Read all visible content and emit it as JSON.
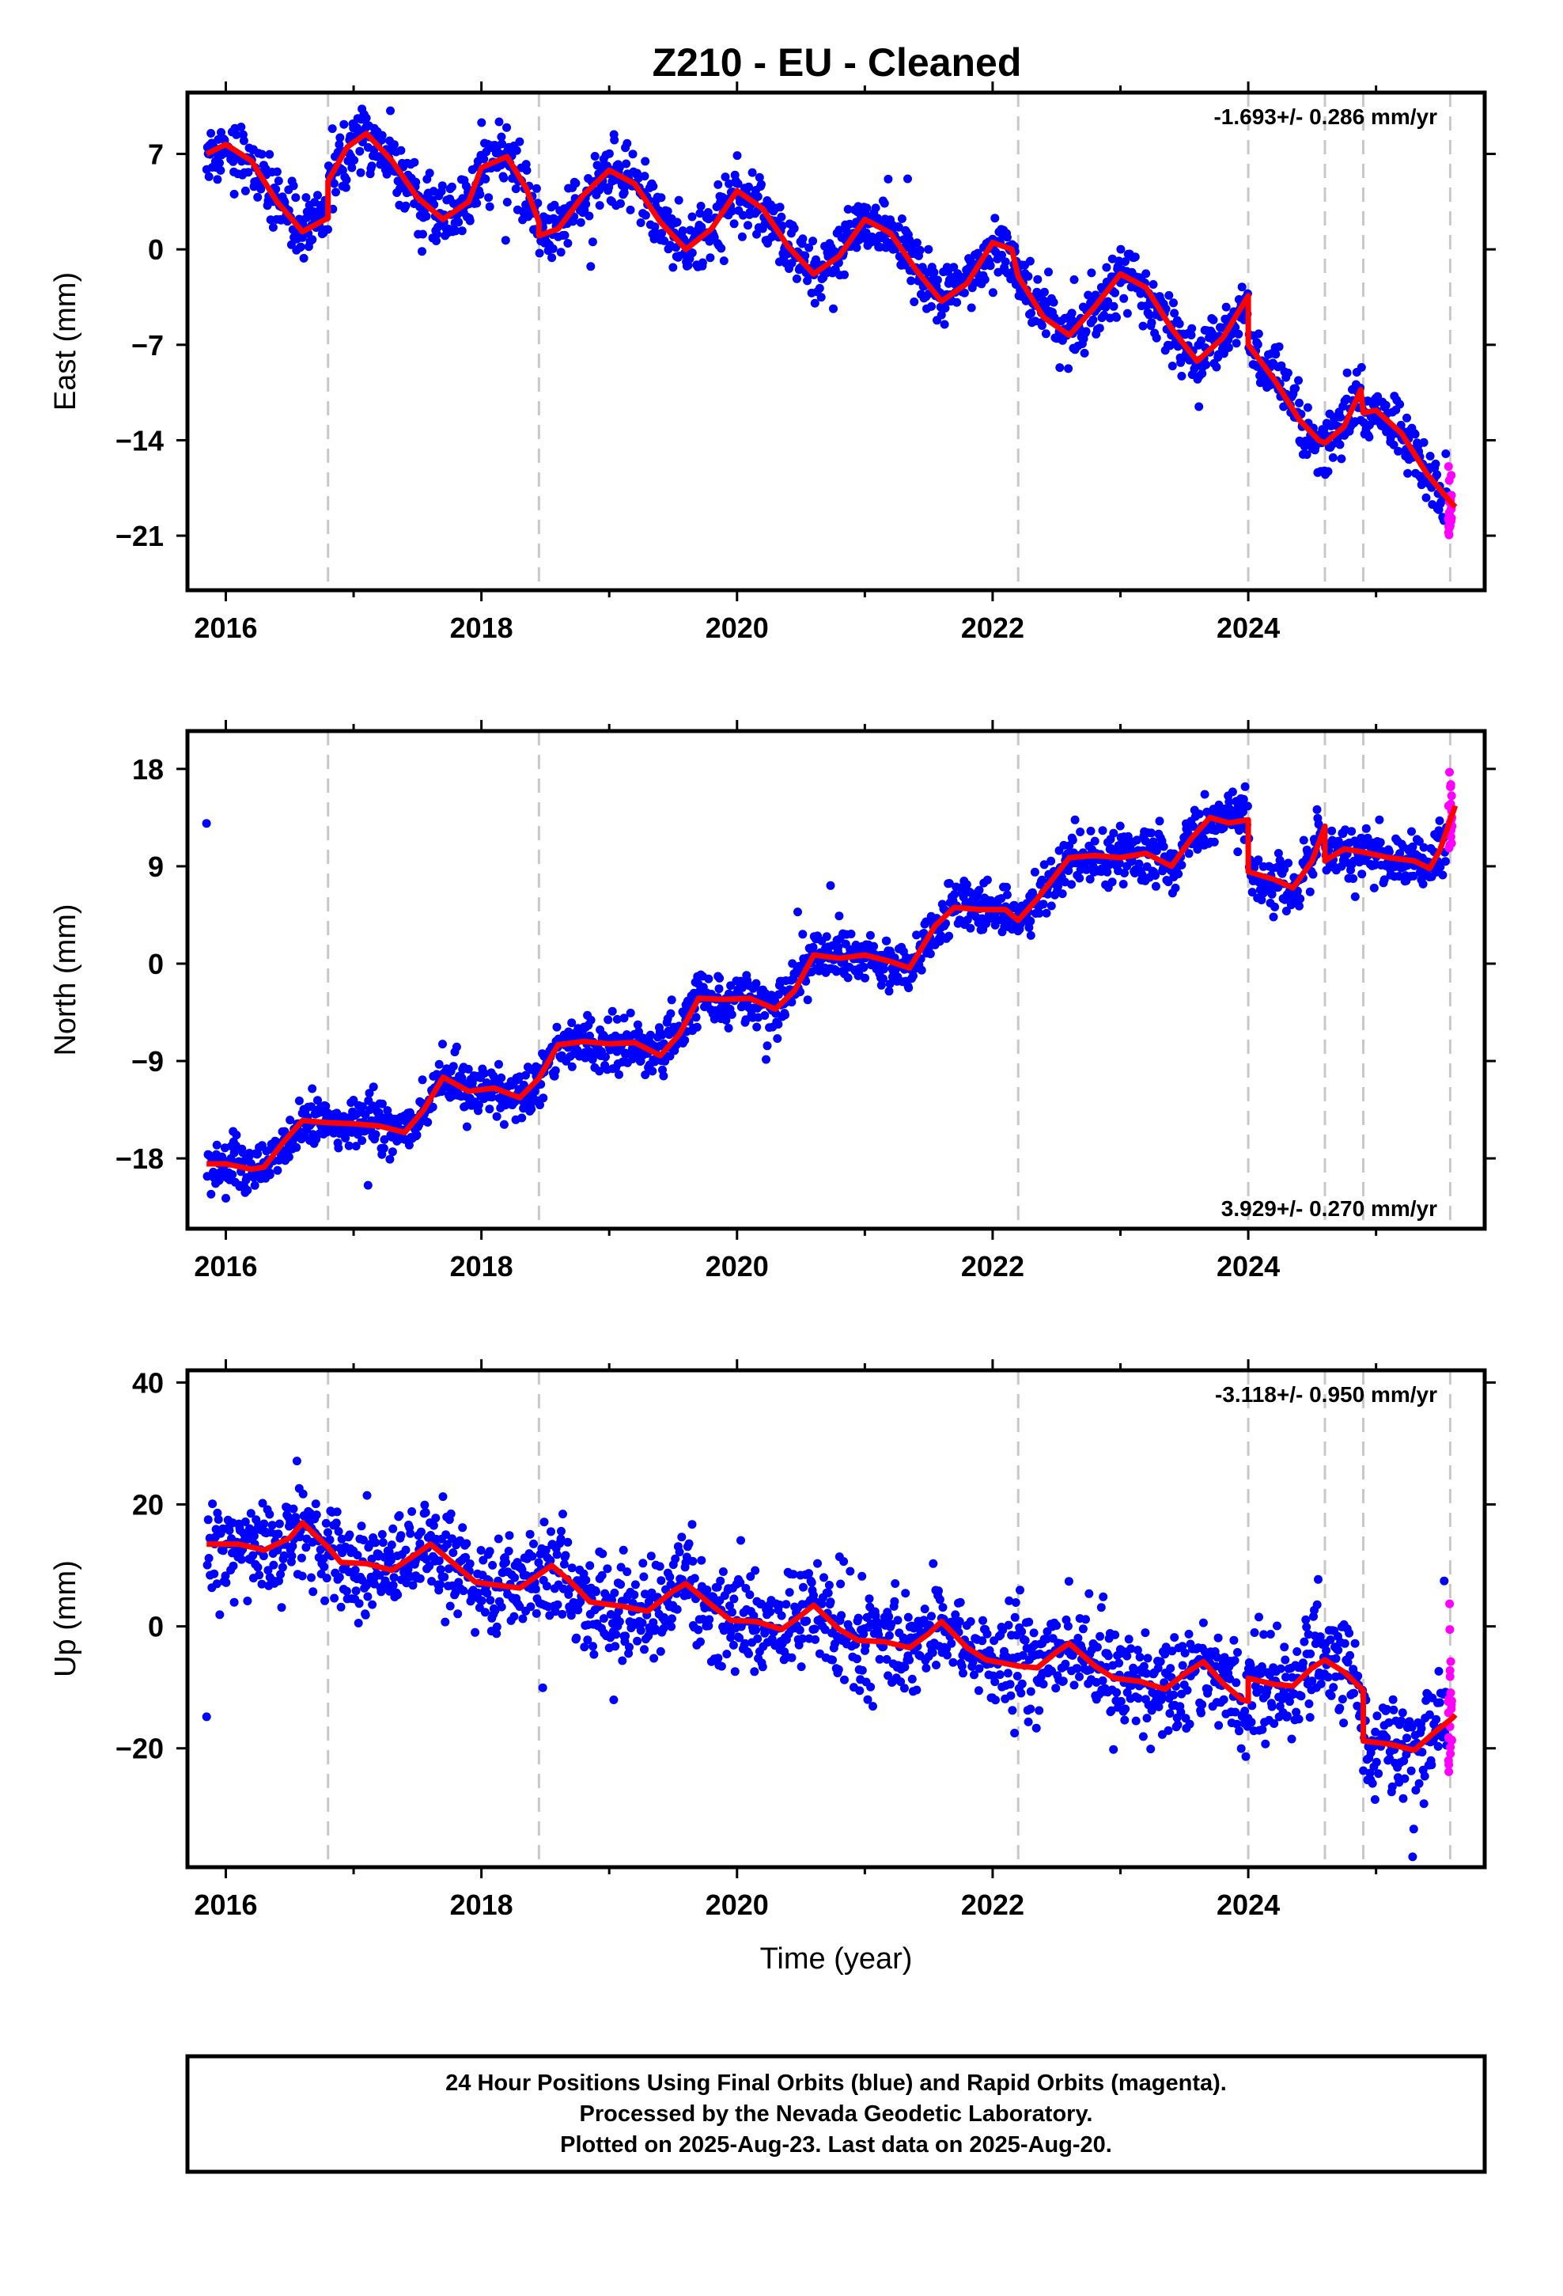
{
  "title": "Z210  - EU - Cleaned",
  "xlabel": "Time (year)",
  "footer_lines": [
    "24 Hour Positions Using Final Orbits (blue) and Rapid Orbits (magenta).",
    "Processed by the Nevada Geodetic Laboratory.",
    "Plotted on 2025-Aug-23. Last data on 2025-Aug-20."
  ],
  "colors": {
    "final": "#0000ff",
    "rapid": "#ff00ff",
    "model": "#ff0000",
    "event_lines": "#c8c8c8"
  },
  "chart_data": [
    {
      "type": "scatter",
      "ylabel": "East (mm)",
      "rate_text": "-1.693+/- 0.286 mm/yr",
      "rate_position": "top-right",
      "xlim": [
        2015.7,
        2025.85
      ],
      "ylim": [
        -25,
        11.5
      ],
      "xticks": [
        2016,
        2018,
        2020,
        2022,
        2024
      ],
      "yticks": [
        7,
        0,
        -7,
        -14,
        -21
      ],
      "event_lines": [
        2016.8,
        2018.45,
        2022.2,
        2024.0,
        2024.6,
        2024.9,
        2025.58
      ],
      "model": [
        [
          2015.85,
          7.0
        ],
        [
          2016.0,
          7.7
        ],
        [
          2016.2,
          6.5
        ],
        [
          2016.4,
          3.5
        ],
        [
          2016.6,
          1.3
        ],
        [
          2016.8,
          2.3
        ],
        [
          2016.8,
          5.0
        ],
        [
          2016.95,
          7.5
        ],
        [
          2017.1,
          8.5
        ],
        [
          2017.3,
          6.5
        ],
        [
          2017.5,
          3.8
        ],
        [
          2017.7,
          2.2
        ],
        [
          2017.9,
          3.5
        ],
        [
          2018.0,
          6.0
        ],
        [
          2018.2,
          6.8
        ],
        [
          2018.35,
          4.5
        ],
        [
          2018.45,
          2.0
        ],
        [
          2018.45,
          1.0
        ],
        [
          2018.6,
          1.5
        ],
        [
          2018.8,
          4.0
        ],
        [
          2019.0,
          5.8
        ],
        [
          2019.2,
          4.8
        ],
        [
          2019.4,
          2.0
        ],
        [
          2019.6,
          0.0
        ],
        [
          2019.8,
          1.5
        ],
        [
          2020.0,
          4.3
        ],
        [
          2020.2,
          3.0
        ],
        [
          2020.4,
          0.2
        ],
        [
          2020.6,
          -1.8
        ],
        [
          2020.8,
          -0.5
        ],
        [
          2021.0,
          2.2
        ],
        [
          2021.2,
          1.2
        ],
        [
          2021.4,
          -1.5
        ],
        [
          2021.6,
          -3.8
        ],
        [
          2021.8,
          -2.5
        ],
        [
          2022.0,
          0.5
        ],
        [
          2022.15,
          0.0
        ],
        [
          2022.2,
          -2.0
        ],
        [
          2022.4,
          -5.0
        ],
        [
          2022.6,
          -6.3
        ],
        [
          2022.8,
          -4.2
        ],
        [
          2023.0,
          -1.8
        ],
        [
          2023.2,
          -2.8
        ],
        [
          2023.4,
          -5.8
        ],
        [
          2023.6,
          -8.2
        ],
        [
          2023.8,
          -6.5
        ],
        [
          2024.0,
          -3.4
        ],
        [
          2024.0,
          -7.0
        ],
        [
          2024.2,
          -9.5
        ],
        [
          2024.4,
          -12.5
        ],
        [
          2024.55,
          -14.0
        ],
        [
          2024.6,
          -14.2
        ],
        [
          2024.75,
          -13.0
        ],
        [
          2024.88,
          -10.3
        ],
        [
          2024.9,
          -12.0
        ],
        [
          2025.0,
          -11.8
        ],
        [
          2025.2,
          -13.5
        ],
        [
          2025.4,
          -16.5
        ],
        [
          2025.58,
          -18.5
        ],
        [
          2025.62,
          -18.9
        ]
      ],
      "model_label": null
    },
    {
      "type": "scatter",
      "ylabel": "North (mm)",
      "rate_text": "3.929+/- 0.270 mm/yr",
      "rate_position": "bottom-right",
      "xlim": [
        2015.7,
        2025.85
      ],
      "ylim": [
        -24.5,
        21.5
      ],
      "xticks": [
        2016,
        2018,
        2020,
        2022,
        2024
      ],
      "yticks": [
        18,
        9,
        0,
        -9,
        -18
      ],
      "event_lines": [
        2016.8,
        2018.45,
        2022.2,
        2024.0,
        2024.6,
        2024.9,
        2025.58
      ],
      "model": [
        [
          2015.85,
          -18.5
        ],
        [
          2016.0,
          -18.5
        ],
        [
          2016.2,
          -19.0
        ],
        [
          2016.3,
          -18.8
        ],
        [
          2016.45,
          -16.5
        ],
        [
          2016.6,
          -14.5
        ],
        [
          2016.8,
          -14.7
        ],
        [
          2017.0,
          -14.8
        ],
        [
          2017.2,
          -15.0
        ],
        [
          2017.4,
          -15.6
        ],
        [
          2017.55,
          -13.5
        ],
        [
          2017.7,
          -10.5
        ],
        [
          2017.9,
          -11.8
        ],
        [
          2018.1,
          -11.5
        ],
        [
          2018.3,
          -12.4
        ],
        [
          2018.45,
          -10.6
        ],
        [
          2018.6,
          -7.5
        ],
        [
          2018.8,
          -7.2
        ],
        [
          2019.0,
          -7.4
        ],
        [
          2019.2,
          -7.3
        ],
        [
          2019.4,
          -8.5
        ],
        [
          2019.55,
          -6.5
        ],
        [
          2019.7,
          -3.2
        ],
        [
          2019.9,
          -3.3
        ],
        [
          2020.1,
          -3.2
        ],
        [
          2020.3,
          -4.2
        ],
        [
          2020.45,
          -2.5
        ],
        [
          2020.6,
          0.8
        ],
        [
          2020.8,
          0.5
        ],
        [
          2021.0,
          0.8
        ],
        [
          2021.2,
          0.2
        ],
        [
          2021.35,
          -0.4
        ],
        [
          2021.55,
          3.5
        ],
        [
          2021.7,
          5.2
        ],
        [
          2021.9,
          5.0
        ],
        [
          2022.1,
          5.0
        ],
        [
          2022.2,
          4.0
        ],
        [
          2022.35,
          6.0
        ],
        [
          2022.6,
          9.8
        ],
        [
          2022.8,
          10.0
        ],
        [
          2023.0,
          9.8
        ],
        [
          2023.2,
          10.2
        ],
        [
          2023.4,
          9.0
        ],
        [
          2023.55,
          11.5
        ],
        [
          2023.7,
          13.5
        ],
        [
          2023.85,
          13.0
        ],
        [
          2024.0,
          13.3
        ],
        [
          2024.0,
          8.5
        ],
        [
          2024.2,
          7.8
        ],
        [
          2024.35,
          7.0
        ],
        [
          2024.5,
          9.5
        ],
        [
          2024.6,
          12.7
        ],
        [
          2024.6,
          9.5
        ],
        [
          2024.75,
          10.6
        ],
        [
          2024.9,
          10.3
        ],
        [
          2025.1,
          9.8
        ],
        [
          2025.3,
          9.5
        ],
        [
          2025.42,
          8.8
        ],
        [
          2025.5,
          10.5
        ],
        [
          2025.62,
          14.6
        ]
      ]
    },
    {
      "type": "scatter",
      "ylabel": "Up (mm)",
      "rate_text": "-3.118+/- 0.950 mm/yr",
      "rate_position": "top-right",
      "xlim": [
        2015.7,
        2025.85
      ],
      "ylim": [
        -39.5,
        42
      ],
      "xticks": [
        2016,
        2018,
        2020,
        2022,
        2024
      ],
      "yticks": [
        40,
        20,
        0,
        -20
      ],
      "event_lines": [
        2016.8,
        2018.45,
        2022.2,
        2024.0,
        2024.6,
        2024.9,
        2025.58
      ],
      "model": [
        [
          2015.85,
          13.5
        ],
        [
          2016.1,
          13.5
        ],
        [
          2016.3,
          12.5
        ],
        [
          2016.5,
          14.5
        ],
        [
          2016.6,
          17.0
        ],
        [
          2016.8,
          13.0
        ],
        [
          2016.9,
          10.5
        ],
        [
          2017.1,
          10.3
        ],
        [
          2017.3,
          9.2
        ],
        [
          2017.5,
          12.0
        ],
        [
          2017.6,
          13.5
        ],
        [
          2017.8,
          10.0
        ],
        [
          2017.95,
          7.3
        ],
        [
          2018.1,
          6.8
        ],
        [
          2018.3,
          6.3
        ],
        [
          2018.45,
          8.5
        ],
        [
          2018.55,
          10.0
        ],
        [
          2018.7,
          7.3
        ],
        [
          2018.85,
          4.0
        ],
        [
          2019.1,
          3.3
        ],
        [
          2019.3,
          2.5
        ],
        [
          2019.5,
          5.8
        ],
        [
          2019.6,
          7.0
        ],
        [
          2019.8,
          3.5
        ],
        [
          2019.95,
          1.0
        ],
        [
          2020.15,
          0.8
        ],
        [
          2020.35,
          -0.5
        ],
        [
          2020.5,
          1.8
        ],
        [
          2020.6,
          3.5
        ],
        [
          2020.8,
          -0.5
        ],
        [
          2020.95,
          -2.3
        ],
        [
          2021.15,
          -2.5
        ],
        [
          2021.35,
          -3.5
        ],
        [
          2021.5,
          -1.2
        ],
        [
          2021.6,
          0.8
        ],
        [
          2021.8,
          -3.5
        ],
        [
          2021.95,
          -5.5
        ],
        [
          2022.2,
          -6.5
        ],
        [
          2022.35,
          -6.8
        ],
        [
          2022.5,
          -4.2
        ],
        [
          2022.6,
          -2.8
        ],
        [
          2022.8,
          -6.5
        ],
        [
          2022.95,
          -8.5
        ],
        [
          2023.15,
          -9.0
        ],
        [
          2023.35,
          -10.3
        ],
        [
          2023.5,
          -7.8
        ],
        [
          2023.65,
          -5.8
        ],
        [
          2023.8,
          -9.3
        ],
        [
          2023.95,
          -12.0
        ],
        [
          2024.0,
          -12.3
        ],
        [
          2024.0,
          -8.5
        ],
        [
          2024.2,
          -9.5
        ],
        [
          2024.35,
          -9.8
        ],
        [
          2024.5,
          -6.8
        ],
        [
          2024.6,
          -5.5
        ],
        [
          2024.75,
          -7.5
        ],
        [
          2024.9,
          -10.5
        ],
        [
          2024.9,
          -18.8
        ],
        [
          2025.1,
          -19.3
        ],
        [
          2025.3,
          -20.3
        ],
        [
          2025.45,
          -17.5
        ],
        [
          2025.6,
          -15.0
        ],
        [
          2025.62,
          -14.5
        ]
      ]
    }
  ]
}
